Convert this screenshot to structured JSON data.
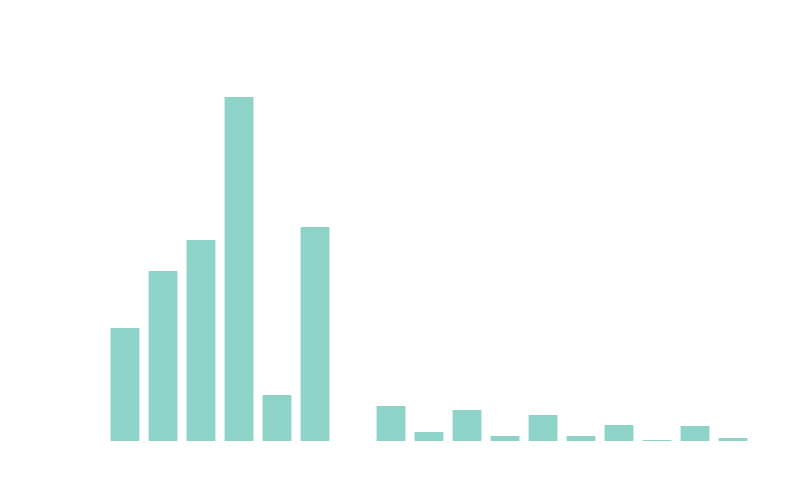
{
  "chart_data": {
    "type": "bar",
    "categories": [
      null,
      null,
      null,
      null,
      null,
      null,
      null,
      null,
      null,
      null,
      null,
      null,
      null,
      null,
      null,
      null,
      null
    ],
    "values": [
      113,
      170,
      201,
      344,
      46,
      214,
      0,
      35,
      9,
      31,
      5,
      26,
      5,
      16,
      1,
      15,
      3
    ],
    "color": "#8dd3c7",
    "ylim": [
      0,
      344
    ]
  }
}
